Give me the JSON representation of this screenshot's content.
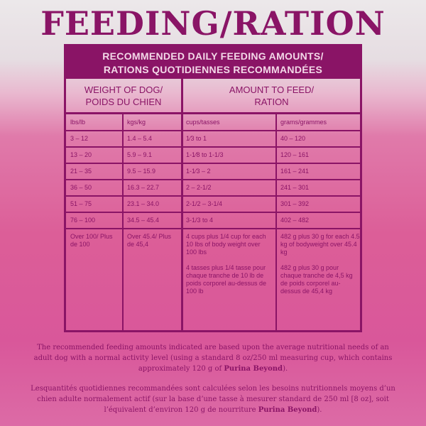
{
  "title": "FEEDING/RATION",
  "table": {
    "band": [
      "RECOMMENDED DAILY FEEDING AMOUNTS/",
      "RATIONS QUOTIDIENNES RECOMMANDÉES"
    ],
    "group_headers": {
      "weight": [
        "WEIGHT OF DOG/",
        "POIDS DU CHIEN"
      ],
      "amount": [
        "AMOUNT TO FEED/",
        "RATION"
      ]
    },
    "columns": [
      "lbs/lb",
      "kgs/kg",
      "cups/tasses",
      "grams/grammes"
    ],
    "rows": [
      [
        "3 – 12",
        "1.4 – 5.4",
        "1⁄3 to 1",
        "40 – 120"
      ],
      [
        "13 – 20",
        "5.9 – 9.1",
        "1-1⁄8 to 1-1/3",
        "120 – 161"
      ],
      [
        "21 – 35",
        "9.5 – 15.9",
        "1-1⁄3 – 2",
        "161 – 241"
      ],
      [
        "36 – 50",
        "16.3 – 22.7",
        "2 – 2-1/2",
        "241 – 301"
      ],
      [
        "51 – 75",
        "23.1 – 34.0",
        "2-1/2 – 3-1/4",
        "301 – 392"
      ],
      [
        "76 – 100",
        "34.5 – 45.4",
        "3-1/3 to 4",
        "402 – 482"
      ]
    ],
    "last_row": {
      "lbs": "Over 100/ Plus de 100",
      "kgs": "Over 45.4/ Plus de 45,4",
      "cups_en": "4 cups plus 1/4 cup for each 10 lbs of body weight over 100 lbs",
      "cups_fr": "4 tasses plus 1/4 tasse pour chaque tranche de 10 lb de poids corporel au-dessus de 100 lb",
      "grams_en": "482 g plus 30 g for each 4.5 kg of bodyweight over 45.4 kg",
      "grams_fr": "482 g plus 30 g pour chaque tranche de 4,5 kg de poids corporel au-dessus de 45,4 kg"
    }
  },
  "notes": {
    "en_text": "The recommended feeding amounts indicated are based upon the average nutritional needs of an adult dog with a normal activity level (using a standard 8 oz/250 ml measuring cup, which contains approximately 120 g of ",
    "en_brand": "Purina Beyond",
    "en_end": ").",
    "fr_text": "Lesquantités quotidiennes recommandées sont calculées selon les besoins nutritionnels moyens d’un chien adulte normalement actif (sur la base d’une tasse à mesurer standard de 250 ml [8 oz], soit l’équivalent d’environ 120 g de nourriture ",
    "fr_brand": "Purina Beyond",
    "fr_end": ")."
  },
  "colors": {
    "primary": "#8a1466",
    "band_text": "#f3d8e8"
  }
}
